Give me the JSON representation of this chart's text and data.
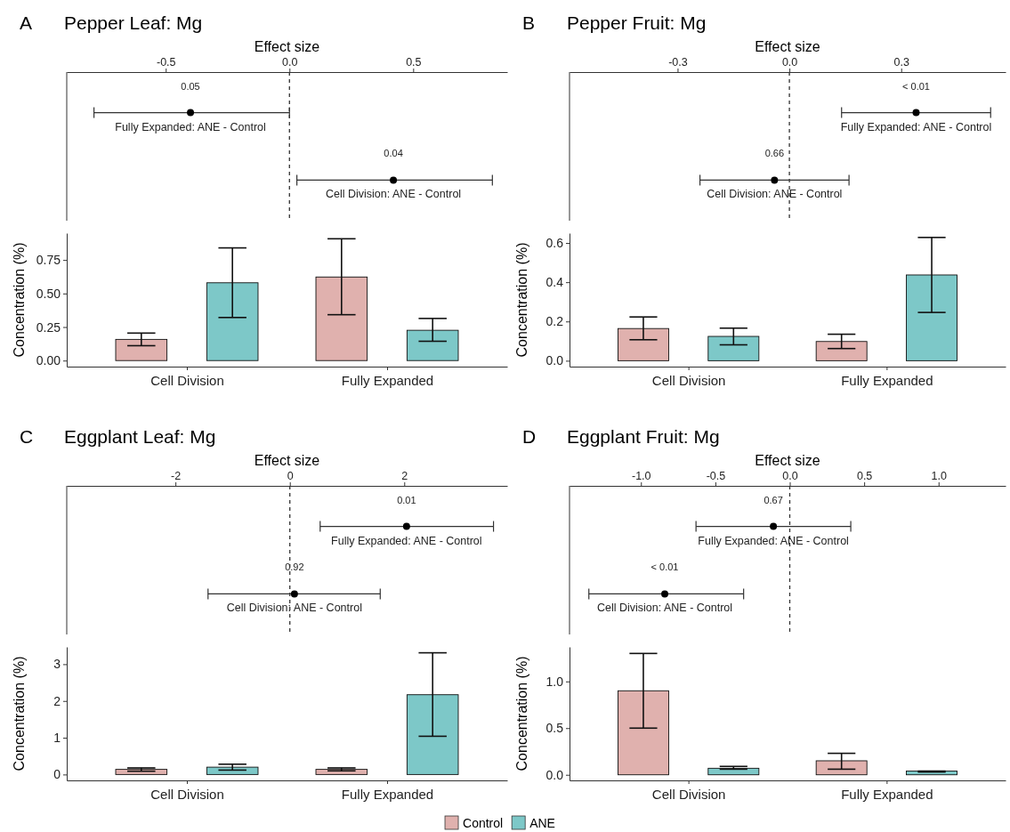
{
  "chart_data": [
    {
      "type": "scatter",
      "orientation": "horizontal",
      "title": "Pepper Leaf: Mg",
      "annotations": [
        "A",
        {
          "text": "0.05",
          "x": -0.4,
          "y": "Fully Expanded: ANE - Control"
        },
        {
          "text": "0.04",
          "x": 0.42,
          "y": "Cell Division: ANE - Control"
        }
      ],
      "xlabel": "Effect size",
      "categories": [
        "Fully Expanded: ANE - Control",
        "Cell Division: ANE - Control"
      ],
      "values": [
        -0.4,
        0.42
      ],
      "errors": [
        [
          -0.79,
          0.0
        ],
        [
          0.03,
          0.82
        ]
      ],
      "color": "#000000",
      "marker": "circle",
      "xlim": [
        -0.9,
        0.88
      ],
      "xticks": [
        -0.5,
        {
          "value": 0,
          "label": "0.0"
        },
        0.5
      ],
      "ref_lines": [
        {
          "axis": "x",
          "value": 0,
          "line_style": "dashed"
        }
      ],
      "tick_labels": "x"
    },
    {
      "type": "bar",
      "ylabel": "Concentration (%)",
      "categories": [
        "Cell Division",
        "Fully Expanded"
      ],
      "ylim": [
        -0.045,
        0.95
      ],
      "yticks": [
        {
          "value": 0,
          "label": "0.00"
        },
        {
          "value": 0.25,
          "label": "0.25"
        },
        {
          "value": 0.5,
          "label": "0.50"
        },
        {
          "value": 0.75,
          "label": "0.75"
        }
      ],
      "series": [
        {
          "color": "#e0b1ae",
          "values": [
            0.158,
            0.623
          ],
          "errors": [
            [
              0.111,
              0.205
            ],
            [
              0.342,
              0.908
            ]
          ]
        },
        {
          "color": "#7dc8c8",
          "values": [
            0.58,
            0.226
          ],
          "errors": [
            [
              0.321,
              0.84
            ],
            [
              0.144,
              0.314
            ]
          ]
        }
      ]
    },
    {
      "type": "scatter",
      "orientation": "horizontal",
      "title": "Pepper Fruit: Mg",
      "annotations": [
        "B",
        {
          "text": "< 0.01",
          "x": 0.34,
          "y": "Fully Expanded: ANE - Control"
        },
        {
          "text": "0.66",
          "x": -0.04,
          "y": "Cell Division: ANE - Control"
        }
      ],
      "xlabel": "Effect size",
      "categories": [
        "Fully Expanded: ANE - Control",
        "Cell Division: ANE - Control"
      ],
      "values": [
        0.34,
        -0.04
      ],
      "errors": [
        [
          0.14,
          0.54
        ],
        [
          -0.24,
          0.16
        ]
      ],
      "color": "#000000",
      "marker": "circle",
      "xlim": [
        -0.59,
        0.58
      ],
      "xticks": [
        -0.3,
        {
          "value": 0,
          "label": "0.0"
        },
        0.3
      ],
      "ref_lines": [
        {
          "axis": "x",
          "value": 0,
          "line_style": "dashed"
        }
      ],
      "tick_labels": "x"
    },
    {
      "type": "bar",
      "ylabel": "Concentration (%)",
      "categories": [
        "Cell Division",
        "Fully Expanded"
      ],
      "ylim": [
        -0.03,
        0.65
      ],
      "yticks": [
        {
          "value": 0,
          "label": "0.0"
        },
        0.2,
        0.4,
        0.6
      ],
      "series": [
        {
          "color": "#e0b1ae",
          "values": [
            0.164,
            0.098
          ],
          "errors": [
            [
              0.107,
              0.223
            ],
            [
              0.062,
              0.135
            ]
          ]
        },
        {
          "color": "#7dc8c8",
          "values": [
            0.124,
            0.437
          ],
          "errors": [
            [
              0.081,
              0.166
            ],
            [
              0.246,
              0.628
            ]
          ]
        }
      ]
    },
    {
      "type": "scatter",
      "orientation": "horizontal",
      "title": "Eggplant Leaf: Mg",
      "annotations": [
        "C",
        {
          "text": "0.01",
          "x": 2.04,
          "y": "Fully Expanded: ANE - Control"
        },
        {
          "text": "0.92",
          "x": 0.08,
          "y": "Cell Division: ANE - Control"
        }
      ],
      "xlabel": "Effect size",
      "categories": [
        "Fully Expanded: ANE - Control",
        "Cell Division: ANE - Control"
      ],
      "values": [
        2.04,
        0.08
      ],
      "errors": [
        [
          0.53,
          3.56
        ],
        [
          -1.43,
          1.58
        ]
      ],
      "color": "#000000",
      "marker": "circle",
      "xlim": [
        -3.9,
        3.8
      ],
      "xticks": [
        -2,
        0,
        2
      ],
      "ref_lines": [
        {
          "axis": "x",
          "value": 0,
          "line_style": "dashed"
        }
      ],
      "tick_labels": "x"
    },
    {
      "type": "bar",
      "ylabel": "Concentration (%)",
      "categories": [
        "Cell Division",
        "Fully Expanded"
      ],
      "ylim": [
        -0.16,
        3.47
      ],
      "yticks": [
        0,
        1,
        2,
        3
      ],
      "series": [
        {
          "color": "#e0b1ae",
          "values": [
            0.14,
            0.14
          ],
          "errors": [
            [
              0.09,
              0.18
            ],
            [
              0.1,
              0.18
            ]
          ]
        },
        {
          "color": "#7dc8c8",
          "values": [
            0.2,
            2.17
          ],
          "errors": [
            [
              0.12,
              0.28
            ],
            [
              1.04,
              3.31
            ]
          ]
        }
      ]
    },
    {
      "type": "scatter",
      "orientation": "horizontal",
      "title": "Eggplant Fruit: Mg",
      "annotations": [
        "D",
        {
          "text": "0.67",
          "x": -0.11,
          "y": "Fully Expanded: ANE - Control"
        },
        {
          "text": "< 0.01",
          "x": -0.84,
          "y": "Cell Division: ANE - Control"
        }
      ],
      "xlabel": "Effect size",
      "categories": [
        "Fully Expanded: ANE - Control",
        "Cell Division: ANE - Control"
      ],
      "values": [
        -0.11,
        -0.84
      ],
      "errors": [
        [
          -0.63,
          0.41
        ],
        [
          -1.35,
          -0.31
        ]
      ],
      "color": "#000000",
      "marker": "circle",
      "xlim": [
        -1.48,
        1.45
      ],
      "xticks": [
        {
          "value": -1,
          "label": "-1.0"
        },
        -0.5,
        {
          "value": 0,
          "label": "0.0"
        },
        0.5,
        {
          "value": 1,
          "label": "1.0"
        }
      ],
      "ref_lines": [
        {
          "axis": "x",
          "value": 0,
          "line_style": "dashed"
        }
      ],
      "tick_labels": "x"
    },
    {
      "type": "bar",
      "ylabel": "Concentration (%)",
      "categories": [
        "Cell Division",
        "Fully Expanded"
      ],
      "ylim": [
        -0.06,
        1.37
      ],
      "yticks": [
        {
          "value": 0,
          "label": "0.0"
        },
        0.5,
        {
          "value": 1,
          "label": "1.0"
        }
      ],
      "legend": "bottom",
      "series": [
        {
          "name": "Control",
          "color": "#e0b1ae",
          "values": [
            0.9,
            0.15
          ],
          "errors": [
            [
              0.5,
              1.3
            ],
            [
              0.06,
              0.23
            ]
          ]
        },
        {
          "name": "ANE",
          "color": "#7dc8c8",
          "values": [
            0.07,
            0.04
          ],
          "errors": [
            [
              0.06,
              0.09
            ],
            [
              0.03,
              0.04
            ]
          ]
        }
      ]
    }
  ]
}
